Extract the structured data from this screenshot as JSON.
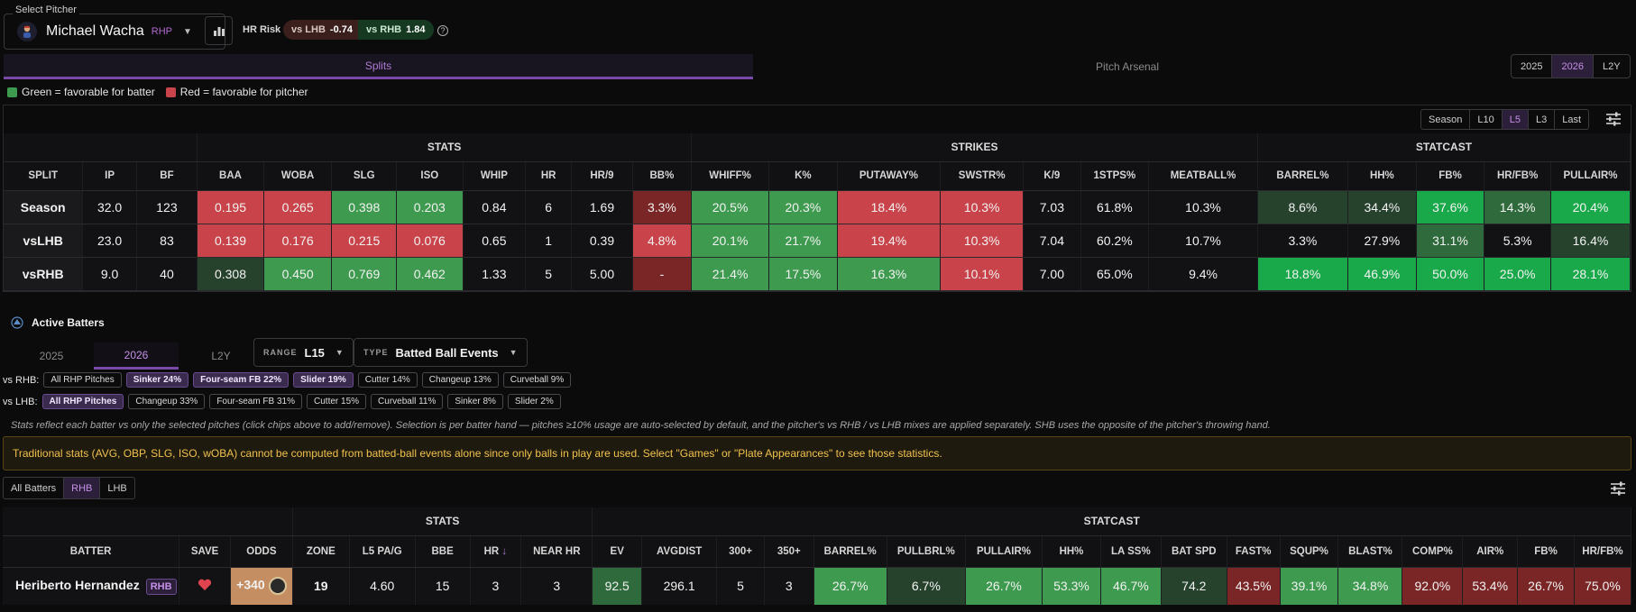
{
  "pitcher": {
    "legend": "Select Pitcher",
    "name": "Michael Wacha",
    "hand": "RHP"
  },
  "hr_risk": {
    "label": "HR Risk",
    "lhb_label": "vs LHB",
    "lhb_value": "-0.74",
    "rhb_label": "vs RHB",
    "rhb_value": "1.84"
  },
  "tabs": {
    "splits": "Splits",
    "arsenal": "Pitch Arsenal"
  },
  "years": [
    "2025",
    "2026",
    "L2Y"
  ],
  "legend": {
    "green": "Green = favorable for batter",
    "red": "Red = favorable for pitcher"
  },
  "range_tabs": [
    "Season",
    "L10",
    "L5",
    "L3",
    "Last"
  ],
  "colors": {
    "red_strong": "#c9444a",
    "red_dark": "#7a2626",
    "green_strong": "#3d9a4e",
    "green_bright": "#19a94a",
    "green_dark": "#26422d",
    "green_mid": "#2e6a3b",
    "neutral": "#121214",
    "accent": "#7a4aa8"
  },
  "splits": {
    "groups": [
      {
        "label": "",
        "span": 3
      },
      {
        "label": "STATS",
        "span": 8
      },
      {
        "label": "STRIKES",
        "span": 7
      },
      {
        "label": "STATCAST",
        "span": 5
      }
    ],
    "columns": [
      "SPLIT",
      "IP",
      "BF",
      "BAA",
      "WOBA",
      "SLG",
      "ISO",
      "WHIP",
      "HR",
      "HR/9",
      "BB%",
      "WHIFF%",
      "K%",
      "PUTAWAY%",
      "SWSTR%",
      "K/9",
      "1STPS%",
      "MEATBALL%",
      "BARREL%",
      "HH%",
      "FB%",
      "HR/FB%",
      "PULLAIR%"
    ],
    "rows": [
      {
        "cells": [
          "Season",
          "32.0",
          "123",
          "0.195",
          "0.265",
          "0.398",
          "0.203",
          "0.84",
          "6",
          "1.69",
          "3.3%",
          "20.5%",
          "20.3%",
          "18.4%",
          "10.3%",
          "7.03",
          "61.8%",
          "10.3%",
          "8.6%",
          "34.4%",
          "37.6%",
          "14.3%",
          "20.4%"
        ],
        "tones": [
          "name",
          "n",
          "n",
          "rs",
          "rs",
          "gs",
          "gs",
          "n",
          "n",
          "n",
          "rd",
          "gs",
          "gs",
          "rs",
          "rs",
          "n",
          "n",
          "n",
          "gd",
          "gd",
          "gb",
          "gm",
          "gb"
        ]
      },
      {
        "cells": [
          "vsLHB",
          "23.0",
          "83",
          "0.139",
          "0.176",
          "0.215",
          "0.076",
          "0.65",
          "1",
          "0.39",
          "4.8%",
          "20.1%",
          "21.7%",
          "19.4%",
          "10.3%",
          "7.04",
          "60.2%",
          "10.7%",
          "3.3%",
          "27.9%",
          "31.1%",
          "5.3%",
          "16.4%"
        ],
        "tones": [
          "name",
          "n",
          "n",
          "rs",
          "rs",
          "rs",
          "rs",
          "n",
          "n",
          "n",
          "rs",
          "gs",
          "gs",
          "rs",
          "rs",
          "n",
          "n",
          "n",
          "n",
          "n",
          "gm",
          "n",
          "gd"
        ]
      },
      {
        "cells": [
          "vsRHB",
          "9.0",
          "40",
          "0.308",
          "0.450",
          "0.769",
          "0.462",
          "1.33",
          "5",
          "5.00",
          "-",
          "21.4%",
          "17.5%",
          "16.3%",
          "10.1%",
          "7.00",
          "65.0%",
          "9.4%",
          "18.8%",
          "46.9%",
          "50.0%",
          "25.0%",
          "28.1%"
        ],
        "tones": [
          "name",
          "n",
          "n",
          "gd",
          "gs",
          "gs",
          "gs",
          "n",
          "n",
          "n",
          "rd",
          "gs",
          "gs",
          "gs",
          "rs",
          "n",
          "n",
          "n",
          "gb",
          "gb",
          "gb",
          "gb",
          "gb"
        ]
      }
    ]
  },
  "active_batters": {
    "title": "Active Batters",
    "year_tabs": [
      "2025",
      "2026",
      "L2Y"
    ],
    "range": {
      "label": "RANGE",
      "value": "L15"
    },
    "type": {
      "label": "TYPE",
      "value": "Batted Ball Events"
    },
    "rhb_label": "vs RHB:",
    "rhb_chips": [
      {
        "label": "All RHP Pitches",
        "selected": false
      },
      {
        "label": "Sinker 24%",
        "selected": true
      },
      {
        "label": "Four-seam FB 22%",
        "selected": true
      },
      {
        "label": "Slider 19%",
        "selected": true
      },
      {
        "label": "Cutter 14%",
        "selected": false
      },
      {
        "label": "Changeup 13%",
        "selected": false
      },
      {
        "label": "Curveball 9%",
        "selected": false
      }
    ],
    "lhb_label": "vs LHB:",
    "lhb_chips": [
      {
        "label": "All RHP Pitches",
        "selected": true
      },
      {
        "label": "Changeup 33%",
        "selected": false
      },
      {
        "label": "Four-seam FB 31%",
        "selected": false
      },
      {
        "label": "Cutter 15%",
        "selected": false
      },
      {
        "label": "Curveball 11%",
        "selected": false
      },
      {
        "label": "Sinker 8%",
        "selected": false
      },
      {
        "label": "Slider 2%",
        "selected": false
      }
    ],
    "note": "Stats reflect each batter vs only the selected pitches (click chips above to add/remove). Selection is per batter hand — pitches ≥10% usage are auto-selected by default, and the pitcher's vs RHB / vs LHB mixes are applied separately. SHB uses the opposite of the pitcher's throwing hand.",
    "warning": "Traditional stats (AVG, OBP, SLG, ISO, wOBA) cannot be computed from batted-ball events alone since only balls in play are used. Select \"Games\" or \"Plate Appearances\" to see those statistics.",
    "filters": [
      "All Batters",
      "RHB",
      "LHB"
    ]
  },
  "batters": {
    "groups": [
      {
        "label": "",
        "span": 3
      },
      {
        "label": "STATS",
        "span": 5
      },
      {
        "label": "STATCAST",
        "span": 17
      }
    ],
    "columns": [
      "BATTER",
      "SAVE",
      "ODDS",
      "ZONE",
      "L5 PA/G",
      "BBE",
      "HR",
      "NEAR HR",
      "EV",
      "AVGDIST",
      "300+",
      "350+",
      "BARREL%",
      "PULLBRL%",
      "PULLAIR%",
      "HH%",
      "LA SS%",
      "BAT SPD",
      "FAST%",
      "SQUP%",
      "BLAST%",
      "COMP%",
      "AIR%",
      "FB%",
      "HR/FB%"
    ],
    "sort_column": "HR",
    "rows": [
      {
        "name": "Heriberto Hernandez",
        "hand": "RHB",
        "odds": "+340",
        "cells": [
          "19",
          "4.60",
          "15",
          "3",
          "3",
          "92.5",
          "296.1",
          "5",
          "3",
          "26.7%",
          "6.7%",
          "26.7%",
          "53.3%",
          "46.7%",
          "74.2",
          "43.5%",
          "39.1%",
          "34.8%",
          "92.0%",
          "53.4%",
          "26.7%",
          "75.0%"
        ],
        "tones": [
          "n",
          "n",
          "n",
          "n",
          "n",
          "gm",
          "n",
          "n",
          "n",
          "gs",
          "gd",
          "gs",
          "gs",
          "gs",
          "gd",
          "rd",
          "gs",
          "gs",
          "rd",
          "rd",
          "rd",
          "rd"
        ]
      }
    ]
  }
}
